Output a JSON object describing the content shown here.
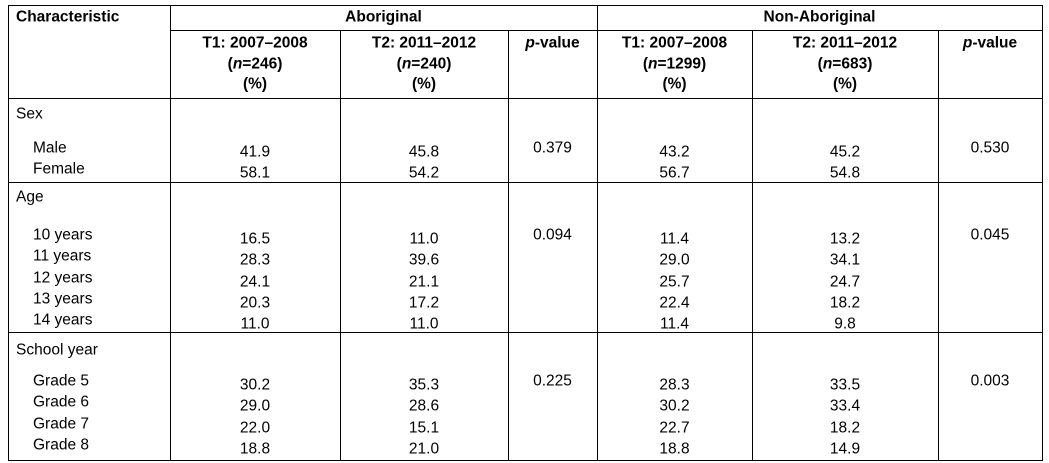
{
  "table": {
    "characteristic_header": "Characteristic",
    "groups": [
      "Aboriginal",
      "Non-Aboriginal"
    ],
    "columns": [
      [
        [
          {
            "text": "T1: 2007–2008"
          }
        ],
        [
          {
            "text": "("
          },
          {
            "text": "n",
            "italic": true
          },
          {
            "text": "=246)"
          }
        ],
        [
          {
            "text": "(%)"
          }
        ]
      ],
      [
        [
          {
            "text": "T2: 2011–2012"
          }
        ],
        [
          {
            "text": "("
          },
          {
            "text": "n",
            "italic": true
          },
          {
            "text": "=240)"
          }
        ],
        [
          {
            "text": "(%)"
          }
        ]
      ],
      [
        [
          {
            "text": "p",
            "italic": true
          },
          {
            "text": "-value"
          }
        ]
      ],
      [
        [
          {
            "text": "T1: 2007–2008"
          }
        ],
        [
          {
            "text": "("
          },
          {
            "text": "n",
            "italic": true
          },
          {
            "text": "=1299)"
          }
        ],
        [
          {
            "text": "(%)"
          }
        ]
      ],
      [
        [
          {
            "text": "T2: 2011–2012"
          }
        ],
        [
          {
            "text": "("
          },
          {
            "text": "n",
            "italic": true
          },
          {
            "text": "=683)"
          }
        ],
        [
          {
            "text": "(%)"
          }
        ]
      ],
      [
        [
          {
            "text": "p",
            "italic": true
          },
          {
            "text": "-value"
          }
        ]
      ]
    ],
    "sections": [
      {
        "label": "Sex",
        "p_values": [
          "0.379",
          "0.530"
        ],
        "rows": [
          {
            "label": "Male",
            "values": [
              "41.9",
              "45.8",
              "43.2",
              "45.2"
            ]
          },
          {
            "label": "Female",
            "values": [
              "58.1",
              "54.2",
              "56.7",
              "54.8"
            ]
          }
        ]
      },
      {
        "label": "Age",
        "p_values": [
          "0.094",
          "0.045"
        ],
        "rows": [
          {
            "label": "10 years",
            "values": [
              "16.5",
              "11.0",
              "11.4",
              "13.2"
            ]
          },
          {
            "label": "11 years",
            "values": [
              "28.3",
              "39.6",
              "29.0",
              "34.1"
            ]
          },
          {
            "label": "12 years",
            "values": [
              "24.1",
              "21.1",
              "25.7",
              "24.7"
            ]
          },
          {
            "label": "13 years",
            "values": [
              "20.3",
              "17.2",
              "22.4",
              "18.2"
            ]
          },
          {
            "label": "14 years",
            "values": [
              "11.0",
              "11.0",
              "11.4",
              "9.8"
            ]
          }
        ]
      },
      {
        "label": "School year",
        "p_values": [
          "0.225",
          "0.003"
        ],
        "rows": [
          {
            "label": "Grade 5",
            "values": [
              "30.2",
              "35.3",
              "28.3",
              "33.5"
            ]
          },
          {
            "label": "Grade 6",
            "values": [
              "29.0",
              "28.6",
              "30.2",
              "33.4"
            ]
          },
          {
            "label": "Grade 7",
            "values": [
              "22.0",
              "15.1",
              "22.7",
              "18.2"
            ]
          },
          {
            "label": "Grade 8",
            "values": [
              "18.8",
              "21.0",
              "18.8",
              "14.9"
            ]
          }
        ]
      }
    ]
  }
}
